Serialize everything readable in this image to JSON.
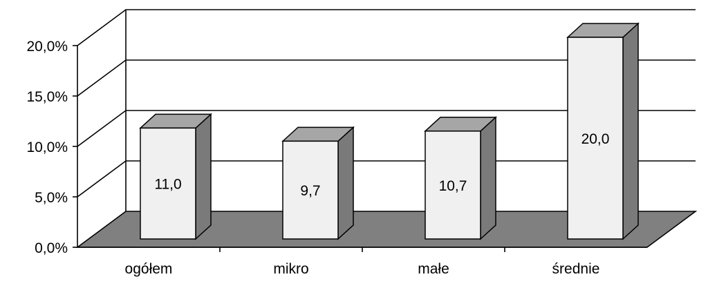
{
  "chart_data": {
    "type": "bar",
    "style": "3d-column",
    "categories": [
      "ogółem",
      "mikro",
      "małe",
      "średnie"
    ],
    "values": [
      11.0,
      9.7,
      10.7,
      20.0
    ],
    "data_labels": [
      "11,0",
      "9,7",
      "10,7",
      "20,0"
    ],
    "ylim": [
      0,
      20
    ],
    "yticks": [
      0,
      5,
      10,
      15,
      20
    ],
    "ytick_labels": [
      "0,0%",
      "5,0%",
      "10,0%",
      "15,0%",
      "20,0%"
    ],
    "grid": true,
    "legend": "none",
    "title": "",
    "xlabel": "",
    "ylabel": "",
    "colors": {
      "bar_front": "#f0f0f0",
      "bar_top": "#a6a6a6",
      "bar_side": "#7a7a7a",
      "floor": "#808080",
      "lines": "#000000"
    }
  }
}
